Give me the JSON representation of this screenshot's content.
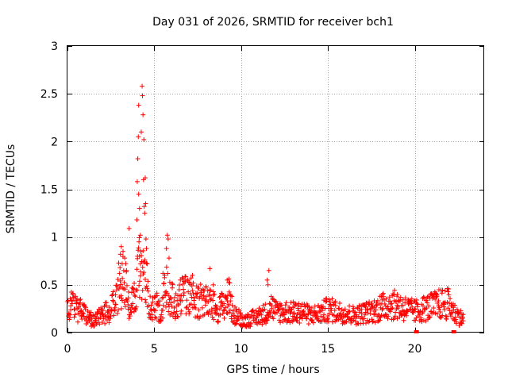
{
  "chart_data": {
    "type": "scatter",
    "title": "Day 031 of 2026, SRMTID for receiver bch1",
    "xlabel": "GPS time / hours",
    "ylabel": "SRMTID / TECUs",
    "xlim": [
      0,
      24
    ],
    "ylim": [
      0,
      3
    ],
    "xticks": [
      0,
      5,
      10,
      15,
      20
    ],
    "yticks": [
      0,
      0.5,
      1,
      1.5,
      2,
      2.5,
      3
    ],
    "xtick_labels": [
      "0",
      "5",
      "10",
      "15",
      "20"
    ],
    "ytick_labels": [
      "0",
      "0.5",
      "1",
      "1.5",
      "2",
      "2.5",
      "3"
    ],
    "grid": true,
    "marker": "plus",
    "color": "#ff0000",
    "series": [
      {
        "name": "bch1",
        "profile": [
          [
            0.0,
            0.22
          ],
          [
            0.3,
            0.33
          ],
          [
            0.6,
            0.24
          ],
          [
            0.9,
            0.22
          ],
          [
            1.2,
            0.16
          ],
          [
            1.5,
            0.12
          ],
          [
            1.8,
            0.16
          ],
          [
            2.1,
            0.2
          ],
          [
            2.4,
            0.23
          ],
          [
            2.7,
            0.3
          ],
          [
            3.0,
            0.5
          ],
          [
            3.3,
            0.55
          ],
          [
            3.6,
            0.28
          ],
          [
            3.9,
            0.35
          ],
          [
            4.2,
            0.75
          ],
          [
            4.5,
            0.55
          ],
          [
            4.8,
            0.22
          ],
          [
            5.1,
            0.28
          ],
          [
            5.4,
            0.22
          ],
          [
            5.7,
            0.45
          ],
          [
            6.0,
            0.35
          ],
          [
            6.3,
            0.28
          ],
          [
            6.6,
            0.38
          ],
          [
            6.9,
            0.38
          ],
          [
            7.2,
            0.38
          ],
          [
            7.5,
            0.3
          ],
          [
            7.8,
            0.35
          ],
          [
            8.1,
            0.3
          ],
          [
            8.4,
            0.28
          ],
          [
            8.7,
            0.24
          ],
          [
            9.0,
            0.3
          ],
          [
            9.3,
            0.35
          ],
          [
            9.6,
            0.18
          ],
          [
            9.9,
            0.16
          ],
          [
            10.2,
            0.12
          ],
          [
            10.5,
            0.14
          ],
          [
            10.8,
            0.16
          ],
          [
            11.1,
            0.18
          ],
          [
            11.4,
            0.2
          ],
          [
            11.7,
            0.28
          ],
          [
            12.0,
            0.22
          ],
          [
            12.5,
            0.22
          ],
          [
            13.0,
            0.2
          ],
          [
            13.5,
            0.22
          ],
          [
            14.0,
            0.18
          ],
          [
            14.5,
            0.2
          ],
          [
            15.0,
            0.24
          ],
          [
            15.5,
            0.22
          ],
          [
            16.0,
            0.2
          ],
          [
            16.5,
            0.18
          ],
          [
            17.0,
            0.2
          ],
          [
            17.5,
            0.22
          ],
          [
            18.0,
            0.25
          ],
          [
            18.5,
            0.3
          ],
          [
            19.0,
            0.28
          ],
          [
            19.5,
            0.25
          ],
          [
            20.0,
            0.22
          ],
          [
            20.5,
            0.25
          ],
          [
            21.0,
            0.27
          ],
          [
            21.5,
            0.3
          ],
          [
            22.0,
            0.3
          ],
          [
            22.3,
            0.2
          ],
          [
            22.6,
            0.16
          ],
          [
            22.8,
            0.14
          ]
        ],
        "spikes": [
          [
            3.0,
            0.62
          ],
          [
            3.05,
            0.82
          ],
          [
            3.1,
            0.9
          ],
          [
            3.15,
            0.72
          ],
          [
            3.2,
            0.85
          ],
          [
            3.3,
            0.78
          ],
          [
            3.4,
            0.65
          ],
          [
            3.55,
            1.09
          ],
          [
            3.7,
            0.42
          ],
          [
            3.9,
            0.38
          ],
          [
            4.0,
            1.18
          ],
          [
            4.02,
            1.58
          ],
          [
            4.05,
            1.82
          ],
          [
            4.08,
            2.05
          ],
          [
            4.1,
            2.38
          ],
          [
            4.12,
            0.95
          ],
          [
            4.15,
            0.8
          ],
          [
            4.2,
            0.72
          ],
          [
            4.25,
            2.1
          ],
          [
            4.3,
            2.58
          ],
          [
            4.32,
            2.48
          ],
          [
            4.35,
            2.28
          ],
          [
            4.38,
            1.6
          ],
          [
            4.4,
            2.02
          ],
          [
            4.42,
            1.32
          ],
          [
            4.45,
            1.25
          ],
          [
            4.48,
            1.62
          ],
          [
            4.5,
            1.35
          ],
          [
            4.52,
            0.98
          ],
          [
            4.55,
            0.88
          ],
          [
            4.6,
            0.72
          ],
          [
            4.1,
            1.45
          ],
          [
            4.15,
            1.3
          ],
          [
            4.2,
            1.02
          ],
          [
            5.5,
            0.62
          ],
          [
            5.6,
            0.6
          ],
          [
            5.7,
            0.88
          ],
          [
            5.75,
            1.02
          ],
          [
            5.8,
            0.98
          ],
          [
            5.85,
            0.78
          ],
          [
            6.5,
            0.55
          ],
          [
            7.0,
            0.52
          ],
          [
            7.2,
            0.6
          ],
          [
            8.2,
            0.67
          ],
          [
            8.4,
            0.5
          ],
          [
            9.2,
            0.55
          ],
          [
            9.3,
            0.56
          ],
          [
            9.35,
            0.52
          ],
          [
            11.5,
            0.55
          ],
          [
            11.6,
            0.65
          ],
          [
            11.55,
            0.5
          ],
          [
            13.0,
            0.32
          ],
          [
            18.0,
            0.38
          ],
          [
            18.1,
            0.3
          ],
          [
            19.0,
            0.4
          ]
        ],
        "outliers": [
          [
            20.1,
            0.0
          ],
          [
            22.25,
            0.0
          ]
        ]
      }
    ]
  }
}
